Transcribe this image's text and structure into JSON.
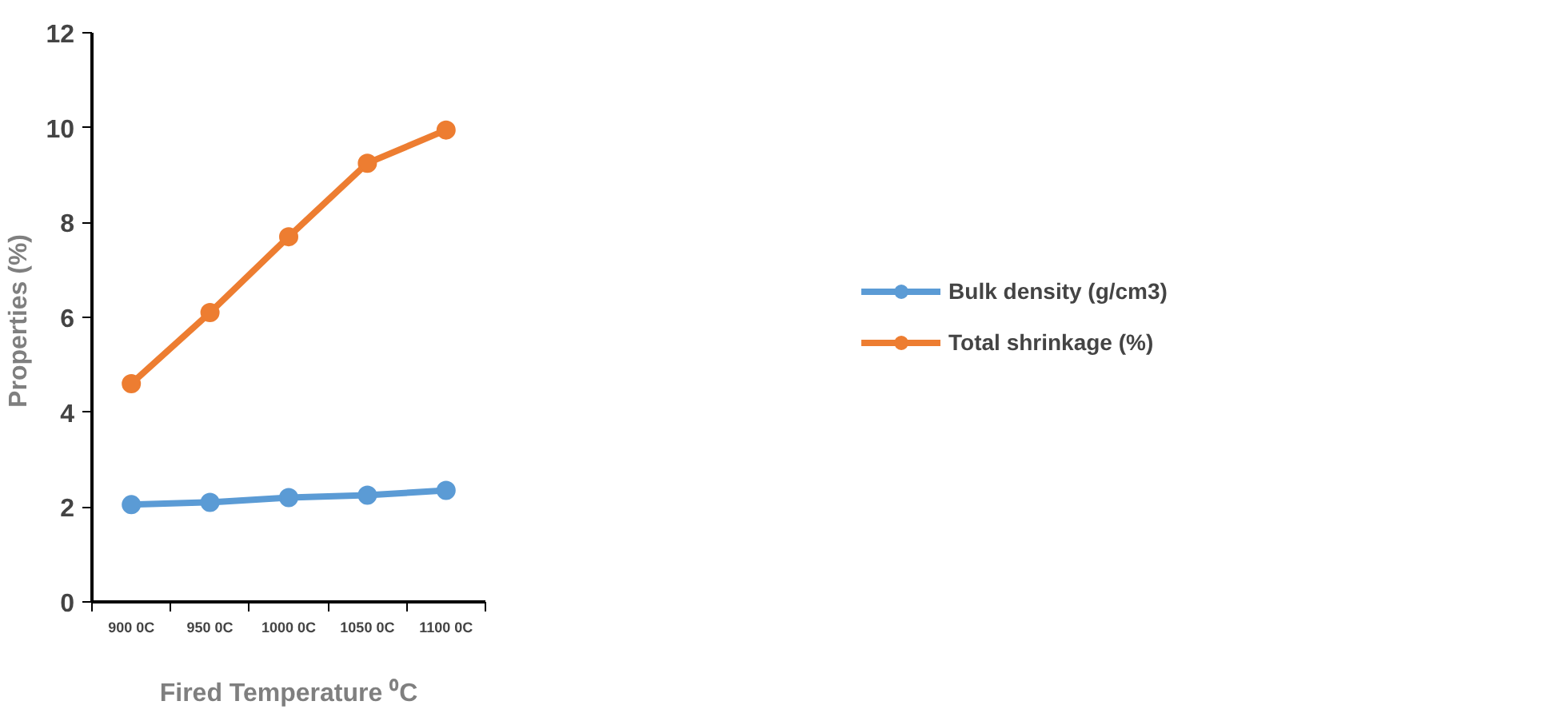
{
  "chart_data": {
    "type": "line",
    "xlabel": "Fired Temperature ⁰C",
    "ylabel": "Properties  (%)",
    "categories": [
      "900 0C",
      "950 0C",
      "1000 0C",
      "1050 0C",
      "1100 0C"
    ],
    "series": [
      {
        "name": "Bulk density (g/cm3)",
        "color": "#5b9bd5",
        "values": [
          2.05,
          2.1,
          2.2,
          2.25,
          2.35
        ]
      },
      {
        "name": "Total shrinkage (%)",
        "color": "#ed7d31",
        "values": [
          4.6,
          6.1,
          7.7,
          9.25,
          9.95
        ]
      }
    ],
    "ylim": [
      0,
      12
    ],
    "yticks": [
      0,
      2,
      4,
      6,
      8,
      10,
      12
    ],
    "grid": false,
    "legend": "right",
    "marker": "circle",
    "line_style": "solid"
  }
}
